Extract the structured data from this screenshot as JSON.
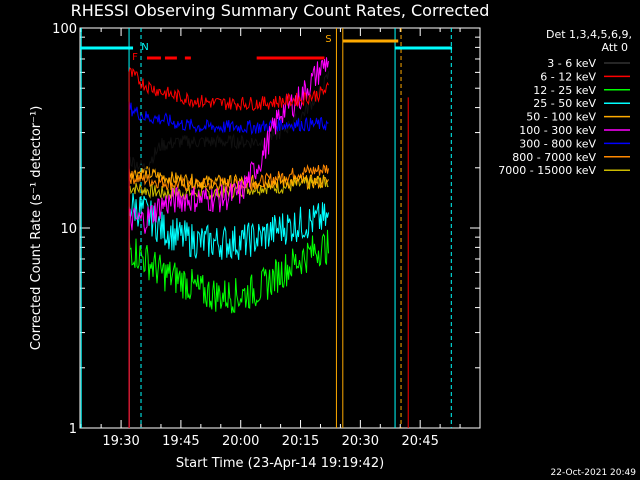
{
  "chart_data": {
    "type": "line",
    "title": "RHESSI Observing Summary Count Rates, Corrected",
    "xlabel": "Start Time (23-Apr-14 19:19:42)",
    "ylabel": "Corrected Count Rate (s⁻¹ detector⁻¹)",
    "y_scale": "log",
    "ylim": [
      1,
      100
    ],
    "xlim_minutes": [
      "19:19:42",
      "21:00:00"
    ],
    "x_ticks": [
      "19:30",
      "19:45",
      "20:00",
      "20:15",
      "20:30",
      "20:45"
    ],
    "y_ticks": [
      "1",
      "10",
      "100"
    ],
    "timestamp": "22-Oct-2021 20:49",
    "legend_header": [
      "Det 1,3,4,5,6,9,",
      "Att 0"
    ],
    "legend_placement": "right",
    "series": [
      {
        "name": "3 - 6 keV",
        "color": "#000000",
        "x": [
          "19:32",
          "19:36",
          "19:40",
          "19:45",
          "19:50",
          "19:55",
          "20:00",
          "20:05",
          "20:10",
          "20:15",
          "20:20",
          "20:22"
        ],
        "values": [
          22,
          20,
          26,
          27,
          27,
          27,
          27,
          27,
          30,
          36,
          48,
          58
        ]
      },
      {
        "name": "6 - 12 keV",
        "color": "#ff0000",
        "x": [
          "19:32",
          "19:36",
          "19:40",
          "19:45",
          "19:50",
          "19:55",
          "20:00",
          "20:05",
          "20:10",
          "20:15",
          "20:20",
          "20:22"
        ],
        "values": [
          60,
          52,
          48,
          45,
          43,
          42,
          42,
          42,
          43,
          44,
          47,
          50
        ]
      },
      {
        "name": "12 - 25 keV",
        "color": "#00ff00",
        "x": [
          "19:32",
          "19:36",
          "19:40",
          "19:45",
          "19:50",
          "19:55",
          "20:00",
          "20:05",
          "20:10",
          "20:15",
          "20:20",
          "20:22"
        ],
        "values": [
          8,
          7,
          6,
          5.5,
          4.8,
          4.6,
          4.6,
          5,
          6,
          7,
          8,
          8
        ]
      },
      {
        "name": "25 - 50 keV",
        "color": "#00ffff",
        "x": [
          "19:32",
          "19:36",
          "19:40",
          "19:45",
          "19:50",
          "19:55",
          "20:00",
          "20:05",
          "20:10",
          "20:15",
          "20:20",
          "20:22"
        ],
        "values": [
          13,
          12,
          10,
          9,
          8.5,
          8.5,
          8.5,
          9,
          10,
          10.5,
          11,
          11
        ]
      },
      {
        "name": "50 - 100 keV",
        "color": "#ffaa00",
        "x": [
          "19:32",
          "19:36",
          "19:40",
          "19:45",
          "19:50",
          "19:55",
          "20:00",
          "20:05",
          "20:10",
          "20:15",
          "20:20",
          "20:22"
        ],
        "values": [
          19,
          19,
          18,
          17.5,
          17,
          17,
          17,
          17,
          17,
          17,
          17,
          17
        ]
      },
      {
        "name": "100 - 300 keV",
        "color": "#ff00ff",
        "x": [
          "19:32",
          "19:36",
          "19:40",
          "19:45",
          "19:50",
          "19:55",
          "20:00",
          "20:05",
          "20:10",
          "20:15",
          "20:18",
          "20:22"
        ],
        "values": [
          11,
          11,
          13,
          14,
          14,
          14,
          15,
          22,
          38,
          45,
          55,
          70
        ]
      },
      {
        "name": "300 - 800 keV",
        "color": "#0000ff",
        "x": [
          "19:32",
          "19:36",
          "19:40",
          "19:45",
          "19:50",
          "19:55",
          "20:00",
          "20:05",
          "20:10",
          "20:15",
          "20:20",
          "20:22"
        ],
        "values": [
          40,
          36,
          35,
          33,
          32,
          32,
          32,
          32,
          33,
          33,
          33,
          33
        ]
      },
      {
        "name": "800 - 7000 keV",
        "color": "#ff8800",
        "x": [
          "19:32",
          "19:36",
          "19:40",
          "19:45",
          "19:50",
          "19:55",
          "20:00",
          "20:05",
          "20:10",
          "20:15",
          "20:20",
          "20:22"
        ],
        "values": [
          18,
          17.5,
          17,
          16.5,
          16.5,
          16.5,
          16.5,
          17,
          18,
          19,
          19.5,
          20
        ]
      },
      {
        "name": "7000 - 15000 keV",
        "color": "#ccbb00",
        "x": [
          "19:32",
          "19:36",
          "19:40",
          "19:45",
          "19:50",
          "19:55",
          "20:00",
          "20:05",
          "20:10",
          "20:15",
          "20:20",
          "20:22"
        ],
        "values": [
          16,
          15.5,
          15,
          15,
          15,
          15,
          15.5,
          16,
          16,
          16.5,
          17,
          17
        ]
      }
    ],
    "flags": [
      {
        "label": "F",
        "color": "#ff0000"
      },
      {
        "label": "N",
        "color": "#00ffff"
      },
      {
        "label": "S",
        "color": "#ffaa00"
      }
    ]
  }
}
